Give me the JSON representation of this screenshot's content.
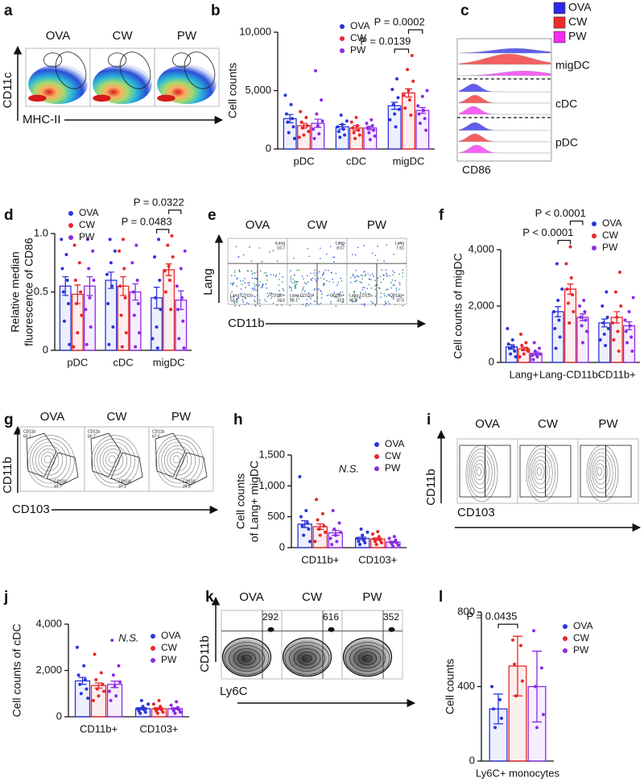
{
  "chart_data": [
    {
      "type": "bar",
      "label": "b",
      "y_label": [
        "Cell counts"
      ],
      "categories": [
        "pDC",
        "cDC",
        "migDC"
      ],
      "ylim": [
        0,
        10000
      ],
      "yticks": [
        0,
        {
          "value": 5000,
          "label": "5,000"
        },
        {
          "value": 10000,
          "label": "10,000"
        }
      ],
      "series": [
        {
          "name": "OVA",
          "color": "#2a35d8",
          "values": [
            2600,
            1900,
            3700
          ],
          "errors": [
            350,
            200,
            300
          ],
          "points": [
            [
              4600,
              3800,
              3000,
              2600,
              2300,
              1900,
              1400,
              900
            ],
            [
              2900,
              2400,
              2100,
              1900,
              1700,
              1500,
              1200,
              1000
            ],
            [
              6000,
              5100,
              4400,
              3800,
              3400,
              3000,
              2500,
              1900
            ]
          ]
        },
        {
          "name": "CW",
          "color": "#e8262a",
          "values": [
            2000,
            1800,
            4800
          ],
          "errors": [
            200,
            200,
            350
          ],
          "points": [
            [
              3200,
              2700,
              2300,
              2000,
              1800,
              1500,
              1200,
              1000
            ],
            [
              2700,
              2300,
              2000,
              1800,
              1600,
              1400,
              1200,
              900
            ],
            [
              8000,
              6800,
              5800,
              5000,
              4600,
              4200,
              3500,
              2900
            ]
          ]
        },
        {
          "name": "PW",
          "color": "#8a2be2",
          "values": [
            2200,
            1800,
            3300
          ],
          "errors": [
            350,
            150,
            250
          ],
          "points": [
            [
              6700,
              4200,
              3000,
              2400,
              2000,
              1700,
              1300,
              900
            ],
            [
              2500,
              2200,
              2000,
              1800,
              1600,
              1400,
              1100,
              800
            ],
            [
              5000,
              4500,
              3700,
              3300,
              3000,
              2600,
              2200,
              1600
            ]
          ]
        }
      ],
      "annotations": [
        {
          "text": "P = 0.0139",
          "category": "migDC",
          "groups": [
            "OVA",
            "CW"
          ]
        },
        {
          "text": "P = 0.0002",
          "category": "migDC",
          "groups": [
            "CW",
            "PW"
          ]
        }
      ]
    },
    {
      "type": "bar",
      "label": "d",
      "y_label": [
        "Relative median",
        "fluorescence of CD86"
      ],
      "categories": [
        "pDC",
        "cDC",
        "migDC"
      ],
      "ylim": [
        0,
        1.0
      ],
      "yticks": [
        0,
        0.5,
        {
          "value": 1.0,
          "label": "1.0"
        }
      ],
      "series": [
        {
          "name": "OVA",
          "color": "#2a35d8",
          "values": [
            0.55,
            0.6,
            0.45
          ],
          "errors": [
            0.08,
            0.07,
            0.09
          ],
          "points": [
            [
              0.95,
              0.82,
              0.7,
              0.6,
              0.5,
              0.4,
              0.25,
              0.05
            ],
            [
              0.95,
              0.85,
              0.75,
              0.65,
              0.55,
              0.4,
              0.2,
              0.05
            ],
            [
              0.95,
              0.8,
              0.6,
              0.45,
              0.35,
              0.2,
              0.1,
              0.02
            ]
          ]
        },
        {
          "name": "CW",
          "color": "#e8262a",
          "values": [
            0.48,
            0.55,
            0.69
          ],
          "errors": [
            0.08,
            0.08,
            0.05
          ],
          "points": [
            [
              0.9,
              0.75,
              0.6,
              0.5,
              0.4,
              0.3,
              0.15,
              0.03
            ],
            [
              0.95,
              0.85,
              0.7,
              0.55,
              0.45,
              0.3,
              0.15,
              0.03
            ],
            [
              0.98,
              0.9,
              0.8,
              0.72,
              0.68,
              0.6,
              0.5,
              0.35
            ]
          ]
        },
        {
          "name": "PW",
          "color": "#8a2be2",
          "values": [
            0.55,
            0.5,
            0.43
          ],
          "errors": [
            0.08,
            0.07,
            0.08
          ],
          "points": [
            [
              0.95,
              0.85,
              0.7,
              0.6,
              0.45,
              0.35,
              0.2,
              0.05
            ],
            [
              0.9,
              0.75,
              0.6,
              0.5,
              0.4,
              0.3,
              0.15,
              0.03
            ],
            [
              0.85,
              0.7,
              0.55,
              0.45,
              0.35,
              0.25,
              0.1,
              0.02
            ]
          ]
        }
      ],
      "annotations": [
        {
          "text": "P = 0.0483",
          "category": "migDC",
          "groups": [
            "OVA",
            "CW"
          ]
        },
        {
          "text": "P = 0.0322",
          "category": "migDC",
          "groups": [
            "CW",
            "PW"
          ]
        }
      ]
    },
    {
      "type": "bar",
      "label": "f",
      "y_label": [
        "Cell counts of migDC"
      ],
      "categories": [
        "Lang+",
        "Lang-CD11b-",
        "CD11b+"
      ],
      "ylim": [
        0,
        4000
      ],
      "yticks": [
        0,
        {
          "value": 2000,
          "label": "2,000"
        },
        {
          "value": 4000,
          "label": "4,000"
        }
      ],
      "series": [
        {
          "name": "OVA",
          "color": "#2a35d8",
          "values": [
            550,
            1800,
            1400
          ],
          "errors": [
            80,
            180,
            140
          ],
          "points": [
            [
              1200,
              800,
              650,
              550,
              500,
              400,
              300,
              200
            ],
            [
              3500,
              2600,
              2200,
              1800,
              1500,
              1200,
              900,
              500
            ],
            [
              2500,
              2000,
              1600,
              1400,
              1200,
              1000,
              800,
              600
            ]
          ]
        },
        {
          "name": "CW",
          "color": "#e8262a",
          "values": [
            480,
            2600,
            1600
          ],
          "errors": [
            60,
            180,
            200
          ],
          "points": [
            [
              1000,
              700,
              600,
              500,
              450,
              400,
              300,
              200
            ],
            [
              4100,
              3500,
              3000,
              2600,
              2400,
              2100,
              1800,
              1400
            ],
            [
              3200,
              2500,
              2000,
              1600,
              1400,
              1100,
              800,
              400
            ]
          ]
        },
        {
          "name": "PW",
          "color": "#8a2be2",
          "values": [
            320,
            1600,
            1300
          ],
          "errors": [
            50,
            120,
            140
          ],
          "points": [
            [
              700,
              500,
              400,
              300,
              280,
              250,
              200,
              100
            ],
            [
              2200,
              2000,
              1800,
              1600,
              1500,
              1300,
              1100,
              700
            ],
            [
              2300,
              1800,
              1500,
              1300,
              1100,
              900,
              700,
              400
            ]
          ]
        }
      ],
      "annotations": [
        {
          "text": "P < 0.0001",
          "category": "Lang-CD11b-",
          "groups": [
            "OVA",
            "CW"
          ]
        },
        {
          "text": "P < 0.0001",
          "category": "Lang-CD11b-",
          "groups": [
            "CW",
            "PW"
          ]
        }
      ]
    },
    {
      "type": "bar",
      "label": "h",
      "y_label": [
        "Cell counts",
        "of Lang+ migDC"
      ],
      "categories": [
        "CD11b+",
        "CD103+"
      ],
      "ylim": [
        0,
        1500
      ],
      "yticks": [
        0,
        500,
        {
          "value": 1000,
          "label": "1,000"
        },
        {
          "value": 1500,
          "label": "1,500"
        }
      ],
      "series": [
        {
          "name": "OVA",
          "color": "#2a35d8",
          "values": [
            380,
            150
          ],
          "errors": [
            55,
            20
          ],
          "points": [
            [
              1150,
              600,
              500,
              400,
              350,
              300,
              200,
              100
            ],
            [
              300,
              250,
              200,
              150,
              120,
              100,
              80,
              50
            ]
          ]
        },
        {
          "name": "CW",
          "color": "#e8262a",
          "values": [
            340,
            140
          ],
          "errors": [
            45,
            18
          ],
          "points": [
            [
              780,
              550,
              450,
              350,
              300,
              250,
              200,
              100
            ],
            [
              260,
              220,
              180,
              140,
              120,
              100,
              80,
              50
            ]
          ]
        },
        {
          "name": "PW",
          "color": "#8a2be2",
          "values": [
            240,
            90
          ],
          "errors": [
            40,
            12
          ],
          "points": [
            [
              600,
              400,
              300,
              250,
              200,
              150,
              100,
              50
            ],
            [
              180,
              150,
              120,
              90,
              80,
              60,
              40,
              20
            ]
          ]
        }
      ],
      "annotations": [
        {
          "text": "N.S."
        }
      ]
    },
    {
      "type": "bar",
      "label": "j",
      "y_label": [
        "Cell counts of cDC"
      ],
      "categories": [
        "CD11b+",
        "CD103+"
      ],
      "ylim": [
        0,
        4000
      ],
      "yticks": [
        0,
        {
          "value": 2000,
          "label": "2,000"
        },
        {
          "value": 4000,
          "label": "4,000"
        }
      ],
      "series": [
        {
          "name": "OVA",
          "color": "#2a35d8",
          "values": [
            1550,
            350
          ],
          "errors": [
            150,
            40
          ],
          "points": [
            [
              3000,
              2200,
              1800,
              1600,
              1400,
              1200,
              1000,
              800
            ],
            [
              700,
              550,
              450,
              350,
              300,
              250,
              200,
              150
            ]
          ]
        },
        {
          "name": "CW",
          "color": "#e8262a",
          "values": [
            1350,
            350
          ],
          "errors": [
            110,
            40
          ],
          "points": [
            [
              2700,
              1900,
              1600,
              1400,
              1200,
              1100,
              900,
              700
            ],
            [
              700,
              550,
              450,
              350,
              300,
              250,
              200,
              150
            ]
          ]
        },
        {
          "name": "PW",
          "color": "#8a2be2",
          "values": [
            1400,
            350
          ],
          "errors": [
            140,
            35
          ],
          "points": [
            [
              3300,
              2200,
              1800,
              1500,
              1300,
              1100,
              900,
              700
            ],
            [
              650,
              500,
              400,
              350,
              300,
              250,
              200,
              150
            ]
          ]
        }
      ],
      "annotations": [
        {
          "text": "N.S."
        }
      ]
    },
    {
      "type": "bar",
      "label": "l",
      "y_label": [
        "Cell counts"
      ],
      "categories": [
        "Ly6C+ monocytes"
      ],
      "ylim": [
        0,
        800
      ],
      "yticks": [
        0,
        400,
        800
      ],
      "series": [
        {
          "name": "OVA",
          "color": "#2a35d8",
          "values": [
            280
          ],
          "errors": [
            80
          ],
          "points": [
            [
              400,
              330,
              280,
              230,
              180
            ]
          ]
        },
        {
          "name": "CW",
          "color": "#e8262a",
          "values": [
            510
          ],
          "errors": [
            160
          ],
          "points": [
            [
              650,
              620,
              520,
              430,
              350
            ]
          ]
        },
        {
          "name": "PW",
          "color": "#8a2be2",
          "values": [
            400
          ],
          "errors": [
            190
          ],
          "points": [
            [
              700,
              500,
              400,
              250,
              180
            ]
          ]
        }
      ],
      "annotations": [
        {
          "text": "P = 0.0435",
          "category": "Ly6C+ monocytes",
          "groups": [
            "OVA",
            "CW"
          ]
        }
      ]
    }
  ],
  "flow_panels": [
    {
      "label": "a",
      "samples": [
        "OVA",
        "CW",
        "PW"
      ],
      "y_axis": "CD11c",
      "x_axis": "MHC-II"
    },
    {
      "label": "c",
      "legend": [
        {
          "name": "OVA",
          "color": "#2a2ae6"
        },
        {
          "name": "CW",
          "color": "#ee2b2b"
        },
        {
          "name": "PW",
          "color": "#f02ef0"
        }
      ],
      "rows": [
        "migDC",
        "cDC",
        "pDC"
      ],
      "x_axis": "CD86"
    },
    {
      "label": "e",
      "samples": [
        "OVA",
        "CW",
        "PW"
      ],
      "y_axis": "Lang",
      "x_axis": "CD11b",
      "gates": [
        {
          "name": "Lang",
          "values": [
            "10.7",
            "8.07",
            "7.61"
          ]
        },
        {
          "name": "Lang-CD11b-",
          "values": [
            "53.8",
            "58.1",
            "55.0"
          ]
        },
        {
          "name": "CD11b+",
          "values": [
            "33.6",
            "33.1",
            "37.6"
          ]
        }
      ]
    },
    {
      "label": "g",
      "samples": [
        "OVA",
        "CW",
        "PW"
      ],
      "y_axis": "CD11b",
      "x_axis": "CD103",
      "gates": [
        {
          "name": "CD11b",
          "values": [
            "65.1",
            "60.7",
            "67.6"
          ]
        },
        {
          "name": "CD103",
          "values": [
            "31.7",
            "37.1",
            "29.8"
          ]
        }
      ]
    },
    {
      "label": "i",
      "samples": [
        "OVA",
        "CW",
        "PW"
      ],
      "y_axis": "CD11b",
      "x_axis": "CD103"
    },
    {
      "label": "k",
      "samples": [
        "OVA",
        "CW",
        "PW"
      ],
      "y_axis": "CD11b",
      "x_axis": "Ly6C",
      "counts": [
        "292",
        "616",
        "352"
      ]
    }
  ]
}
